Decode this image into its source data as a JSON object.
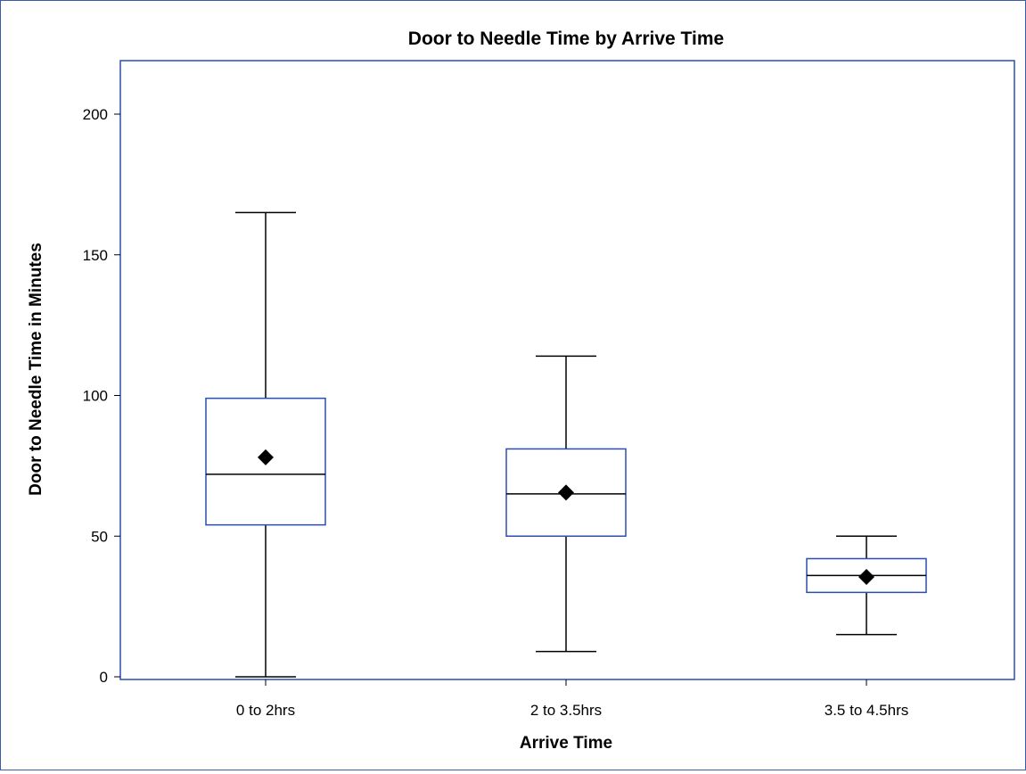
{
  "chart_data": {
    "type": "boxplot",
    "title": "Door to Needle Time by Arrive Time",
    "xlabel": "Arrive Time",
    "ylabel": "Door to Needle Time in Minutes",
    "ylim": [
      -2,
      219
    ],
    "yticks": [
      0,
      50,
      100,
      150,
      200
    ],
    "grid": false,
    "categories": [
      "0 to 2hrs",
      "2 to 3.5hrs",
      "3.5 to 4.5hrs"
    ],
    "boxes": [
      {
        "category": "0 to 2hrs",
        "min": 0,
        "q1": 54,
        "median": 72,
        "q3": 99,
        "max": 165,
        "mean": 78
      },
      {
        "category": "2 to 3.5hrs",
        "min": 9,
        "q1": 50,
        "median": 65,
        "q3": 81,
        "max": 114,
        "mean": 65.5
      },
      {
        "category": "3.5 to 4.5hrs",
        "min": 15,
        "q1": 30,
        "median": 36,
        "q3": 42,
        "max": 50,
        "mean": 35.5
      }
    ],
    "colors": {
      "box_outline": "#2b4fb0",
      "whisker": "#000000",
      "mean_marker": "#000000",
      "plot_border": "#2b4fb0"
    }
  }
}
